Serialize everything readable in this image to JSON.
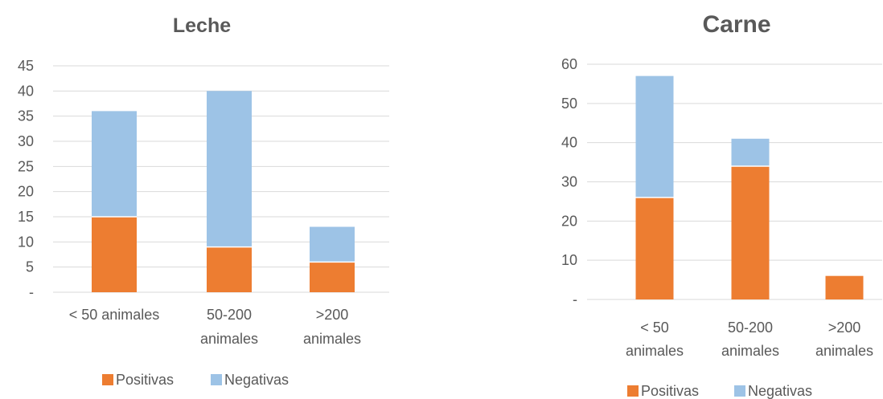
{
  "chart_data": [
    {
      "type": "bar",
      "stacked": true,
      "title": "Leche",
      "categories": [
        [
          "< 50 animales"
        ],
        [
          "50-200",
          "animales"
        ],
        [
          ">200",
          "animales"
        ]
      ],
      "series": [
        {
          "name": "Positivas",
          "values": [
            15,
            9,
            6
          ],
          "color": "#ed7d31"
        },
        {
          "name": "Negativas",
          "values": [
            21,
            31,
            7
          ],
          "color": "#9dc3e6"
        }
      ],
      "ylim": [
        0,
        45
      ],
      "yticks": [
        "-",
        "5",
        "10",
        "15",
        "20",
        "25",
        "30",
        "35",
        "40",
        "45"
      ],
      "grid": true,
      "legend": "bottom"
    },
    {
      "type": "bar",
      "stacked": true,
      "title": "Carne",
      "categories": [
        [
          "< 50",
          "animales"
        ],
        [
          "50-200",
          "animales"
        ],
        [
          ">200",
          "animales"
        ]
      ],
      "series": [
        {
          "name": "Positivas",
          "values": [
            26,
            34,
            6
          ],
          "color": "#ed7d31"
        },
        {
          "name": "Negativas",
          "values": [
            31,
            7,
            0
          ],
          "color": "#9dc3e6"
        }
      ],
      "ylim": [
        0,
        60
      ],
      "yticks": [
        "-",
        "10",
        "20",
        "30",
        "40",
        "50",
        "60"
      ],
      "grid": true,
      "legend": "bottom"
    }
  ]
}
